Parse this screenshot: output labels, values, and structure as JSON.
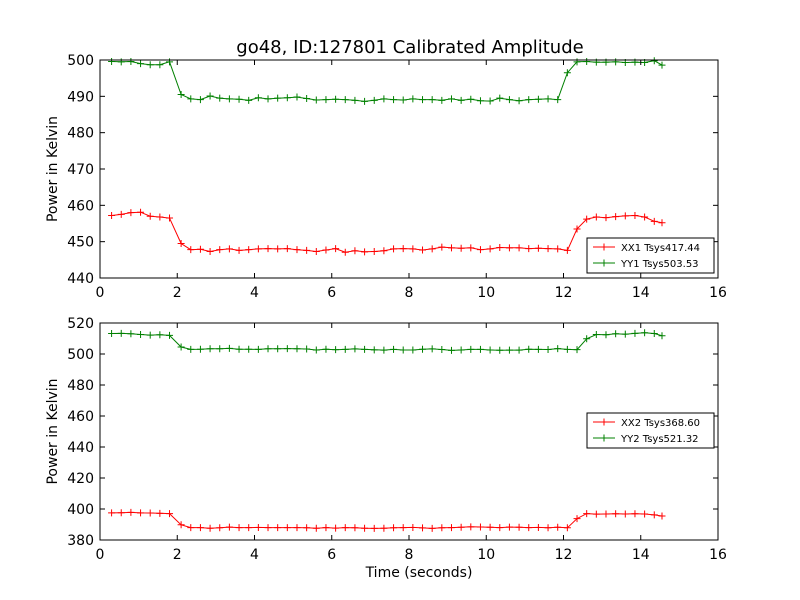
{
  "title": "go48, ID:127801 Calibrated Amplitude",
  "chart_data": [
    {
      "type": "line",
      "xlabel": "",
      "ylabel": "Power in Kelvin",
      "xlim": [
        0,
        16
      ],
      "ylim": [
        440,
        500
      ],
      "xticks": [
        0,
        2,
        4,
        6,
        8,
        10,
        12,
        14,
        16
      ],
      "yticks": [
        440,
        450,
        460,
        470,
        480,
        490,
        500
      ],
      "grid": false,
      "legend_position": "lower-right",
      "x": [
        0.3,
        0.55,
        0.8,
        1.05,
        1.3,
        1.55,
        1.8,
        2.1,
        2.35,
        2.6,
        2.85,
        3.1,
        3.35,
        3.6,
        3.85,
        4.1,
        4.35,
        4.6,
        4.85,
        5.1,
        5.35,
        5.6,
        5.85,
        6.1,
        6.35,
        6.6,
        6.85,
        7.1,
        7.35,
        7.6,
        7.85,
        8.1,
        8.35,
        8.6,
        8.85,
        9.1,
        9.35,
        9.6,
        9.85,
        10.1,
        10.35,
        10.6,
        10.85,
        11.1,
        11.35,
        11.6,
        11.85,
        12.1,
        12.35,
        12.6,
        12.85,
        13.1,
        13.35,
        13.6,
        13.85,
        14.1,
        14.35,
        14.55
      ],
      "series": [
        {
          "name": "XX1 Tsys417.44",
          "color": "#ff0000",
          "values": [
            457.2,
            457.5,
            458.0,
            458.1,
            457.0,
            456.8,
            456.5,
            449.5,
            447.8,
            447.9,
            447.3,
            447.8,
            448.0,
            447.6,
            447.8,
            448.0,
            448.1,
            448.0,
            448.1,
            447.8,
            447.6,
            447.3,
            447.7,
            448.1,
            447.1,
            447.5,
            447.2,
            447.3,
            447.5,
            448.0,
            448.1,
            448.0,
            447.7,
            448.0,
            448.5,
            448.3,
            448.2,
            448.3,
            447.8,
            448.0,
            448.4,
            448.3,
            448.3,
            448.1,
            448.2,
            448.1,
            448.0,
            447.6,
            453.5,
            456.2,
            456.8,
            456.6,
            456.9,
            457.1,
            457.2,
            456.8,
            455.6,
            455.2
          ]
        },
        {
          "name": "YY1 Tsys503.53",
          "color": "#008000",
          "values": [
            499.6,
            499.5,
            499.6,
            499.0,
            498.7,
            498.7,
            499.5,
            490.5,
            489.3,
            489.1,
            490.1,
            489.5,
            489.3,
            489.2,
            488.9,
            489.6,
            489.3,
            489.5,
            489.6,
            489.8,
            489.4,
            489.0,
            489.1,
            489.2,
            489.1,
            488.9,
            488.6,
            488.9,
            489.3,
            489.1,
            489.0,
            489.3,
            489.1,
            489.1,
            488.9,
            489.3,
            488.9,
            489.2,
            488.8,
            488.7,
            489.5,
            489.1,
            488.8,
            489.1,
            489.2,
            489.3,
            489.1,
            496.5,
            499.5,
            499.6,
            499.4,
            499.4,
            499.5,
            499.3,
            499.4,
            499.3,
            499.8,
            498.6
          ]
        }
      ]
    },
    {
      "type": "line",
      "xlabel": "Time (seconds)",
      "ylabel": "Power in Kelvin",
      "xlim": [
        0,
        16
      ],
      "ylim": [
        380,
        520
      ],
      "xticks": [
        0,
        2,
        4,
        6,
        8,
        10,
        12,
        14,
        16
      ],
      "yticks": [
        380,
        400,
        420,
        440,
        460,
        480,
        500,
        520
      ],
      "grid": false,
      "legend_position": "center-right",
      "x": [
        0.3,
        0.55,
        0.8,
        1.05,
        1.3,
        1.55,
        1.8,
        2.1,
        2.35,
        2.6,
        2.85,
        3.1,
        3.35,
        3.6,
        3.85,
        4.1,
        4.35,
        4.6,
        4.85,
        5.1,
        5.35,
        5.6,
        5.85,
        6.1,
        6.35,
        6.6,
        6.85,
        7.1,
        7.35,
        7.6,
        7.85,
        8.1,
        8.35,
        8.6,
        8.85,
        9.1,
        9.35,
        9.6,
        9.85,
        10.1,
        10.35,
        10.6,
        10.85,
        11.1,
        11.35,
        11.6,
        11.85,
        12.1,
        12.35,
        12.6,
        12.85,
        13.1,
        13.35,
        13.6,
        13.85,
        14.1,
        14.35,
        14.55
      ],
      "series": [
        {
          "name": "XX2 Tsys368.60",
          "color": "#ff0000",
          "values": [
            397.5,
            397.6,
            397.8,
            397.5,
            397.4,
            397.2,
            397.0,
            389.8,
            388.0,
            388.0,
            387.6,
            387.9,
            388.3,
            388.0,
            388.0,
            388.1,
            388.0,
            388.0,
            388.0,
            388.0,
            387.9,
            387.6,
            388.0,
            387.7,
            388.0,
            387.9,
            387.6,
            387.5,
            387.6,
            387.9,
            388.0,
            388.1,
            387.8,
            387.5,
            387.9,
            388.0,
            388.2,
            388.5,
            388.4,
            388.2,
            388.0,
            388.3,
            388.2,
            388.0,
            388.1,
            387.9,
            388.2,
            387.9,
            393.8,
            397.0,
            396.7,
            396.8,
            396.9,
            396.8,
            396.9,
            396.8,
            396.2,
            395.5
          ]
        },
        {
          "name": "YY2 Tsys521.32",
          "color": "#008000",
          "values": [
            513.2,
            513.3,
            513.1,
            512.6,
            512.2,
            512.4,
            512.0,
            504.5,
            503.0,
            503.1,
            503.4,
            503.4,
            503.6,
            503.1,
            503.1,
            503.0,
            503.4,
            503.4,
            503.5,
            503.4,
            503.2,
            502.6,
            503.1,
            502.8,
            503.0,
            503.3,
            503.0,
            502.7,
            502.5,
            503.0,
            502.6,
            502.6,
            503.1,
            503.3,
            502.9,
            502.3,
            502.6,
            503.0,
            503.0,
            502.6,
            502.4,
            502.5,
            502.5,
            503.1,
            503.0,
            502.9,
            503.5,
            503.0,
            502.8,
            509.8,
            512.6,
            512.4,
            513.1,
            512.8,
            513.3,
            513.7,
            513.2,
            511.8
          ]
        }
      ]
    }
  ]
}
